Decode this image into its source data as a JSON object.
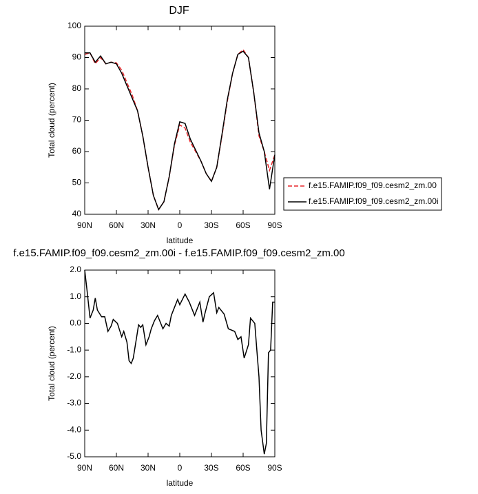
{
  "chart_data": [
    {
      "type": "line",
      "title": "DJF",
      "x_label": "latitude",
      "y_label": "Total cloud (percent)",
      "x": [
        90,
        85,
        80,
        75,
        70,
        65,
        60,
        55,
        50,
        45,
        40,
        35,
        30,
        25,
        20,
        15,
        10,
        5,
        0,
        -5,
        -10,
        -15,
        -20,
        -25,
        -30,
        -35,
        -40,
        -45,
        -50,
        -55,
        -60,
        -65,
        -70,
        -75,
        -80,
        -85,
        -90
      ],
      "series": [
        {
          "name": "f.e15.FAMIP.f09_f09.cesm2_zm.00",
          "color": "#e8262a",
          "line_style": "dashed",
          "values": [
            91,
            91.5,
            88,
            90,
            88,
            88.5,
            88.3,
            86,
            82,
            78,
            73,
            65,
            55,
            46,
            41.5,
            44,
            52,
            62,
            68.5,
            67.5,
            63,
            60,
            57,
            53,
            50.5,
            55,
            65,
            76,
            85,
            91,
            92.5,
            90,
            79,
            65,
            60,
            54,
            59
          ]
        },
        {
          "name": "f.e15.FAMIP.f09_f09.cesm2_zm.00i",
          "color": "#000000",
          "line_style": "solid",
          "values": [
            91.5,
            91.5,
            88.5,
            90.5,
            88,
            88.5,
            88,
            85,
            81,
            77,
            73,
            65,
            55,
            46,
            41.5,
            44,
            52,
            62.5,
            69.5,
            69,
            64,
            60.5,
            57,
            53,
            50.5,
            55,
            65.5,
            76.5,
            85,
            91,
            92,
            90,
            79,
            66,
            60,
            48,
            59
          ]
        }
      ],
      "xlim": [
        90,
        -90
      ],
      "xticks": [
        {
          "value": 90,
          "label": "90N"
        },
        {
          "value": 60,
          "label": "60N"
        },
        {
          "value": 30,
          "label": "30N"
        },
        0,
        {
          "value": -30,
          "label": "30S"
        },
        {
          "value": -60,
          "label": "60S"
        },
        {
          "value": -90,
          "label": "90S"
        }
      ],
      "ylim": [
        40,
        100
      ],
      "yticks": [
        40,
        50,
        60,
        70,
        80,
        90,
        100
      ],
      "legend": "right"
    },
    {
      "type": "line",
      "title": "f.e15.FAMIP.f09_f09.cesm2_zm.00i - f.e15.FAMIP.f09_f09.cesm2_zm.00",
      "x_label": "latitude",
      "y_label": "Total cloud (percent)",
      "x": [
        90,
        88,
        85,
        82,
        80,
        78,
        74,
        71,
        68,
        65,
        63,
        59,
        55,
        53,
        50,
        48,
        46,
        44,
        40,
        39,
        37,
        35,
        32,
        29,
        27,
        24,
        21,
        19,
        16,
        13,
        10,
        8,
        5,
        2,
        0,
        -5,
        -9,
        -14,
        -19,
        -22,
        -24,
        -28,
        -32,
        -35,
        -37,
        -42,
        -46,
        -52,
        -55,
        -58,
        -61,
        -65,
        -67,
        -71,
        -73,
        -75,
        -77,
        -80,
        -82,
        -84,
        -86,
        -88,
        -90
      ],
      "values": [
        2.0,
        1.3,
        0.2,
        0.5,
        0.95,
        0.5,
        0.25,
        0.25,
        -0.3,
        -0.1,
        0.15,
        0.0,
        -0.5,
        -0.3,
        -0.7,
        -1.4,
        -1.5,
        -1.3,
        -0.3,
        -0.05,
        -0.15,
        -0.05,
        -0.8,
        -0.5,
        -0.2,
        0.1,
        0.3,
        0.1,
        -0.2,
        0.0,
        -0.1,
        0.3,
        0.6,
        0.9,
        0.7,
        1.1,
        0.8,
        0.3,
        0.8,
        0.05,
        0.4,
        1.0,
        1.15,
        0.4,
        0.6,
        0.35,
        -0.2,
        -0.3,
        -0.6,
        -0.5,
        -1.3,
        -0.8,
        0.2,
        0.0,
        -1.0,
        -2.0,
        -4.0,
        -4.9,
        -4.5,
        -1.1,
        -1.0,
        0.8,
        0.8
      ],
      "color": "#000000",
      "xlim": [
        90,
        -90
      ],
      "xticks": [
        {
          "value": 90,
          "label": "90N"
        },
        {
          "value": 60,
          "label": "60N"
        },
        {
          "value": 30,
          "label": "30N"
        },
        0,
        {
          "value": -30,
          "label": "30S"
        },
        {
          "value": -60,
          "label": "60S"
        },
        {
          "value": -90,
          "label": "90S"
        }
      ],
      "ylim": [
        -5,
        2
      ],
      "yticks": [
        {
          "value": -5,
          "label": "-5.0"
        },
        {
          "value": -4,
          "label": "-4.0"
        },
        {
          "value": -3,
          "label": "-3.0"
        },
        {
          "value": -2,
          "label": "-2.0"
        },
        {
          "value": -1,
          "label": "-1.0"
        },
        {
          "value": 0,
          "label": "0.0"
        },
        {
          "value": 1,
          "label": "1.0"
        },
        {
          "value": 2,
          "label": "2.0"
        }
      ]
    }
  ]
}
